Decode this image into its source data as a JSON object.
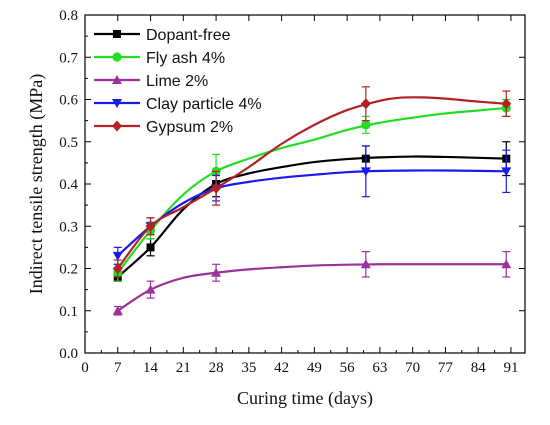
{
  "chart_data": {
    "type": "line",
    "xlabel": "Curing time (days)",
    "ylabel": "Indirect tensile strength (MPa)",
    "xlim": [
      0,
      94
    ],
    "ylim": [
      0,
      0.8
    ],
    "xticks": [
      0,
      7,
      14,
      21,
      28,
      35,
      42,
      49,
      56,
      63,
      70,
      77,
      84,
      91
    ],
    "yticks": [
      0.0,
      0.1,
      0.2,
      0.3,
      0.4,
      0.5,
      0.6,
      0.7,
      0.8
    ],
    "xtick_labels": [
      "0",
      "7",
      "14",
      "21",
      "28",
      "35",
      "42",
      "49",
      "56",
      "63",
      "70",
      "77",
      "84",
      "91"
    ],
    "ytick_labels": [
      "0.0",
      "0.1",
      "0.2",
      "0.3",
      "0.4",
      "0.5",
      "0.6",
      "0.7",
      "0.8"
    ],
    "legend_position": "top-left",
    "grid": false,
    "x": [
      7,
      14,
      28,
      60,
      90
    ],
    "series": [
      {
        "name": "Dopant-free",
        "color": "#000000",
        "marker": "square",
        "values": [
          0.18,
          0.25,
          0.4,
          0.46,
          0.46
        ],
        "errors": [
          0.01,
          0.02,
          0.03,
          0.03,
          0.04
        ],
        "curve": [
          [
            7,
            0.18
          ],
          [
            14,
            0.25
          ],
          [
            21,
            0.34
          ],
          [
            28,
            0.4
          ],
          [
            35,
            0.425
          ],
          [
            42,
            0.44
          ],
          [
            49,
            0.452
          ],
          [
            56,
            0.459
          ],
          [
            63,
            0.463
          ],
          [
            70,
            0.465
          ],
          [
            77,
            0.464
          ],
          [
            84,
            0.462
          ],
          [
            90,
            0.46
          ]
        ]
      },
      {
        "name": "Fly ash 4%",
        "color": "#22dd22",
        "marker": "circle",
        "values": [
          0.19,
          0.29,
          0.43,
          0.54,
          0.58
        ],
        "errors": [
          0.02,
          0.02,
          0.04,
          0.02,
          0.02
        ],
        "curve": [
          [
            7,
            0.19
          ],
          [
            14,
            0.29
          ],
          [
            21,
            0.375
          ],
          [
            28,
            0.43
          ],
          [
            35,
            0.46
          ],
          [
            42,
            0.485
          ],
          [
            49,
            0.505
          ],
          [
            56,
            0.528
          ],
          [
            63,
            0.545
          ],
          [
            70,
            0.557
          ],
          [
            77,
            0.567
          ],
          [
            84,
            0.574
          ],
          [
            90,
            0.58
          ]
        ]
      },
      {
        "name": "Lime 2%",
        "color": "#993399",
        "marker": "triangle-up",
        "values": [
          0.1,
          0.15,
          0.19,
          0.21,
          0.21
        ],
        "errors": [
          0.01,
          0.02,
          0.02,
          0.03,
          0.03
        ],
        "curve": [
          [
            7,
            0.1
          ],
          [
            14,
            0.15
          ],
          [
            21,
            0.178
          ],
          [
            28,
            0.19
          ],
          [
            35,
            0.198
          ],
          [
            42,
            0.203
          ],
          [
            49,
            0.207
          ],
          [
            56,
            0.209
          ],
          [
            63,
            0.21
          ],
          [
            70,
            0.21
          ],
          [
            77,
            0.21
          ],
          [
            84,
            0.21
          ],
          [
            90,
            0.21
          ]
        ]
      },
      {
        "name": "Clay particle 4%",
        "color": "#1a1aee",
        "marker": "triangle-down",
        "values": [
          0.23,
          0.3,
          0.39,
          0.43,
          0.43
        ],
        "errors": [
          0.02,
          0.02,
          0.03,
          0.06,
          0.05
        ],
        "curve": [
          [
            7,
            0.23
          ],
          [
            14,
            0.3
          ],
          [
            21,
            0.355
          ],
          [
            28,
            0.39
          ],
          [
            35,
            0.405
          ],
          [
            42,
            0.415
          ],
          [
            49,
            0.422
          ],
          [
            56,
            0.428
          ],
          [
            63,
            0.431
          ],
          [
            70,
            0.432
          ],
          [
            77,
            0.432
          ],
          [
            84,
            0.431
          ],
          [
            90,
            0.43
          ]
        ]
      },
      {
        "name": "Gypsum 2%",
        "color": "#b22222",
        "marker": "diamond",
        "values": [
          0.2,
          0.3,
          0.39,
          0.59,
          0.59
        ],
        "errors": [
          0.02,
          0.02,
          0.04,
          0.04,
          0.03
        ],
        "curve": [
          [
            7,
            0.2
          ],
          [
            14,
            0.3
          ],
          [
            21,
            0.345
          ],
          [
            28,
            0.39
          ],
          [
            35,
            0.44
          ],
          [
            42,
            0.495
          ],
          [
            49,
            0.54
          ],
          [
            56,
            0.575
          ],
          [
            63,
            0.597
          ],
          [
            67,
            0.604
          ],
          [
            72,
            0.605
          ],
          [
            77,
            0.602
          ],
          [
            84,
            0.595
          ],
          [
            90,
            0.59
          ]
        ]
      }
    ]
  }
}
